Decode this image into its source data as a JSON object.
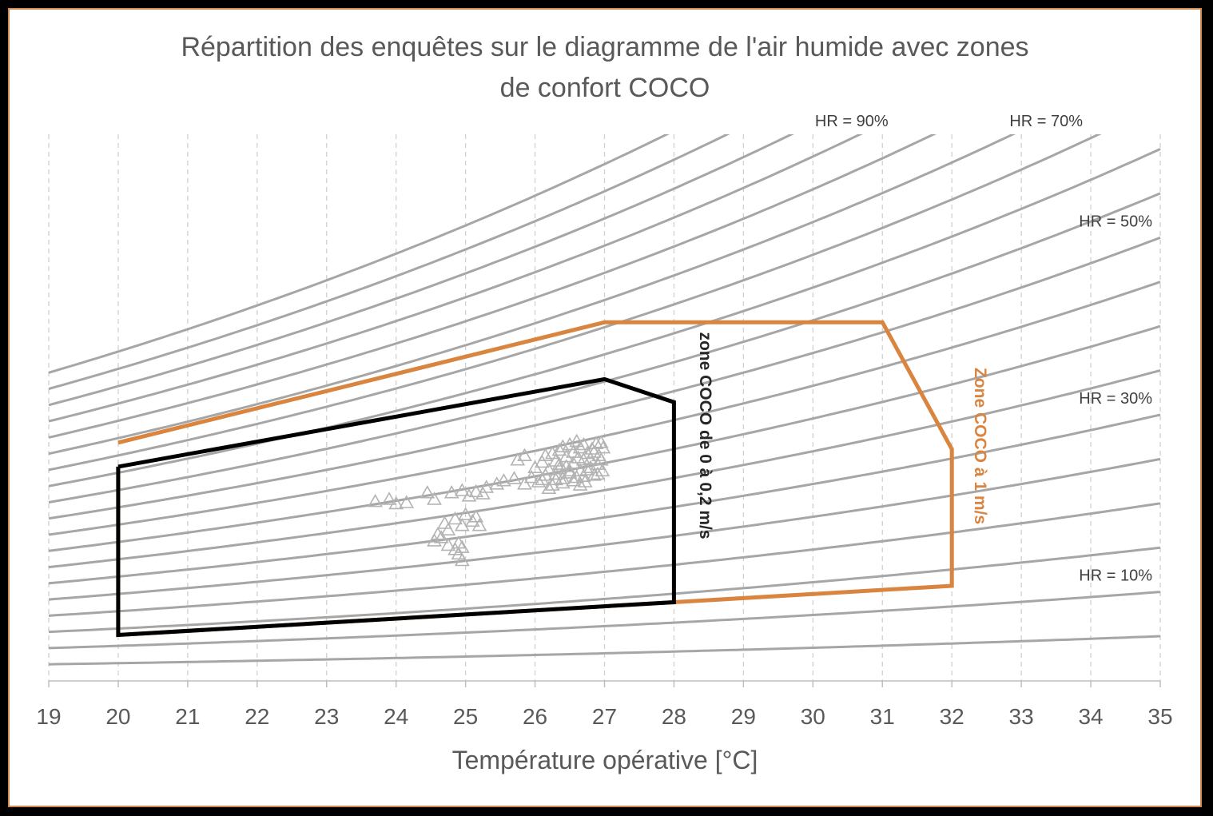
{
  "chart_data": {
    "type": "scatter",
    "title_lines": [
      "Répartition des enquêtes sur le diagramme de l'air humide avec zones",
      "de confort COCO"
    ],
    "xlabel": "Température opérative [°C]",
    "ylabel": "",
    "xlim": [
      19,
      35
    ],
    "ylim": [
      0,
      25
    ],
    "x_ticks": [
      19,
      20,
      21,
      22,
      23,
      24,
      25,
      26,
      27,
      28,
      29,
      30,
      31,
      32,
      33,
      34,
      35
    ],
    "grid": "vertical dashed",
    "rh_curves": {
      "values": [
        5,
        10,
        15,
        20,
        25,
        30,
        35,
        40,
        45,
        50,
        55,
        60,
        65,
        70,
        75,
        80,
        85,
        90,
        95
      ],
      "color": "#a6a6a6",
      "labels": [
        {
          "text": "HR = 10%",
          "rh": 10
        },
        {
          "text": "HR = 30%",
          "rh": 30
        },
        {
          "text": "HR = 50%",
          "rh": 50
        },
        {
          "text": "HR = 70%",
          "rh": 70
        },
        {
          "text": "HR = 90%",
          "rh": 90
        }
      ]
    },
    "zones": [
      {
        "name": "Zone COCO à 1 m/s",
        "color": "#d9843f",
        "points": [
          [
            20,
            10.9
          ],
          [
            27,
            16.4
          ],
          [
            31,
            16.4
          ],
          [
            32,
            10.6
          ],
          [
            32,
            4.35
          ],
          [
            28,
            3.6
          ],
          [
            20,
            2.1
          ],
          [
            20,
            9.8
          ]
        ]
      },
      {
        "name": "zone COCO de 0 à 0,2 m/s",
        "color": "#000000",
        "points": [
          [
            20,
            9.8
          ],
          [
            27,
            13.8
          ],
          [
            28,
            12.75
          ],
          [
            28,
            3.6
          ],
          [
            20,
            2.1
          ],
          [
            20,
            9.8
          ]
        ]
      }
    ],
    "series": [
      {
        "marker": "triangle-open",
        "color": "#b3b3b3",
        "points": [
          [
            23.7,
            8.2
          ],
          [
            23.9,
            8.3
          ],
          [
            24.0,
            8.1
          ],
          [
            24.15,
            8.15
          ],
          [
            24.45,
            8.6
          ],
          [
            24.55,
            8.3
          ],
          [
            24.8,
            8.6
          ],
          [
            24.95,
            8.7
          ],
          [
            25.05,
            8.45
          ],
          [
            25.15,
            8.65
          ],
          [
            25.25,
            8.55
          ],
          [
            25.3,
            8.85
          ],
          [
            25.45,
            9.0
          ],
          [
            25.55,
            9.15
          ],
          [
            25.7,
            9.25
          ],
          [
            25.85,
            9.0
          ],
          [
            25.95,
            9.3
          ],
          [
            26.05,
            9.1
          ],
          [
            26.15,
            9.4
          ],
          [
            26.2,
            8.8
          ],
          [
            26.25,
            8.95
          ],
          [
            26.3,
            9.45
          ],
          [
            26.35,
            9.7
          ],
          [
            26.4,
            9.25
          ],
          [
            26.45,
            9.8
          ],
          [
            26.5,
            9.5
          ],
          [
            26.55,
            9.95
          ],
          [
            26.6,
            9.3
          ],
          [
            26.62,
            10.2
          ],
          [
            26.65,
            9.6
          ],
          [
            26.7,
            10.1
          ],
          [
            26.72,
            9.1
          ],
          [
            26.75,
            10.4
          ],
          [
            26.8,
            9.75
          ],
          [
            26.82,
            10.6
          ],
          [
            26.85,
            9.4
          ],
          [
            26.88,
            10.85
          ],
          [
            26.9,
            9.9
          ],
          [
            26.92,
            10.3
          ],
          [
            26.95,
            10.9
          ],
          [
            26.97,
            9.6
          ],
          [
            26.98,
            10.65
          ],
          [
            26.35,
            10.55
          ],
          [
            26.5,
            10.8
          ],
          [
            26.6,
            10.95
          ],
          [
            26.15,
            10.3
          ],
          [
            26.3,
            10.05
          ],
          [
            26.0,
            9.75
          ],
          [
            26.1,
            10.0
          ],
          [
            25.75,
            10.1
          ],
          [
            25.85,
            10.3
          ],
          [
            26.45,
            10.25
          ],
          [
            26.55,
            9.15
          ],
          [
            26.65,
            8.95
          ],
          [
            26.7,
            9.35
          ],
          [
            26.4,
            9.05
          ],
          [
            26.2,
            9.65
          ],
          [
            26.1,
            9.2
          ],
          [
            26.35,
            9.9
          ],
          [
            26.75,
            9.65
          ],
          [
            26.8,
            10.15
          ],
          [
            26.9,
            9.45
          ],
          [
            26.95,
            10.1
          ],
          [
            26.85,
            10.45
          ],
          [
            26.25,
            10.4
          ],
          [
            26.4,
            10.7
          ],
          [
            26.55,
            10.45
          ],
          [
            26.65,
            10.65
          ],
          [
            26.7,
            10.8
          ],
          [
            26.5,
            9.6
          ],
          [
            26.3,
            9.2
          ],
          [
            25.0,
            7.6
          ],
          [
            25.1,
            7.3
          ],
          [
            24.95,
            7.1
          ],
          [
            24.85,
            7.4
          ],
          [
            24.75,
            6.9
          ],
          [
            24.7,
            7.2
          ],
          [
            24.6,
            6.7
          ],
          [
            24.55,
            6.4
          ],
          [
            24.65,
            6.55
          ],
          [
            24.75,
            6.2
          ],
          [
            24.85,
            6.0
          ],
          [
            24.9,
            6.3
          ],
          [
            24.95,
            6.1
          ],
          [
            24.9,
            5.8
          ],
          [
            24.95,
            5.5
          ],
          [
            25.2,
            7.1
          ],
          [
            25.15,
            7.5
          ]
        ]
      }
    ]
  }
}
